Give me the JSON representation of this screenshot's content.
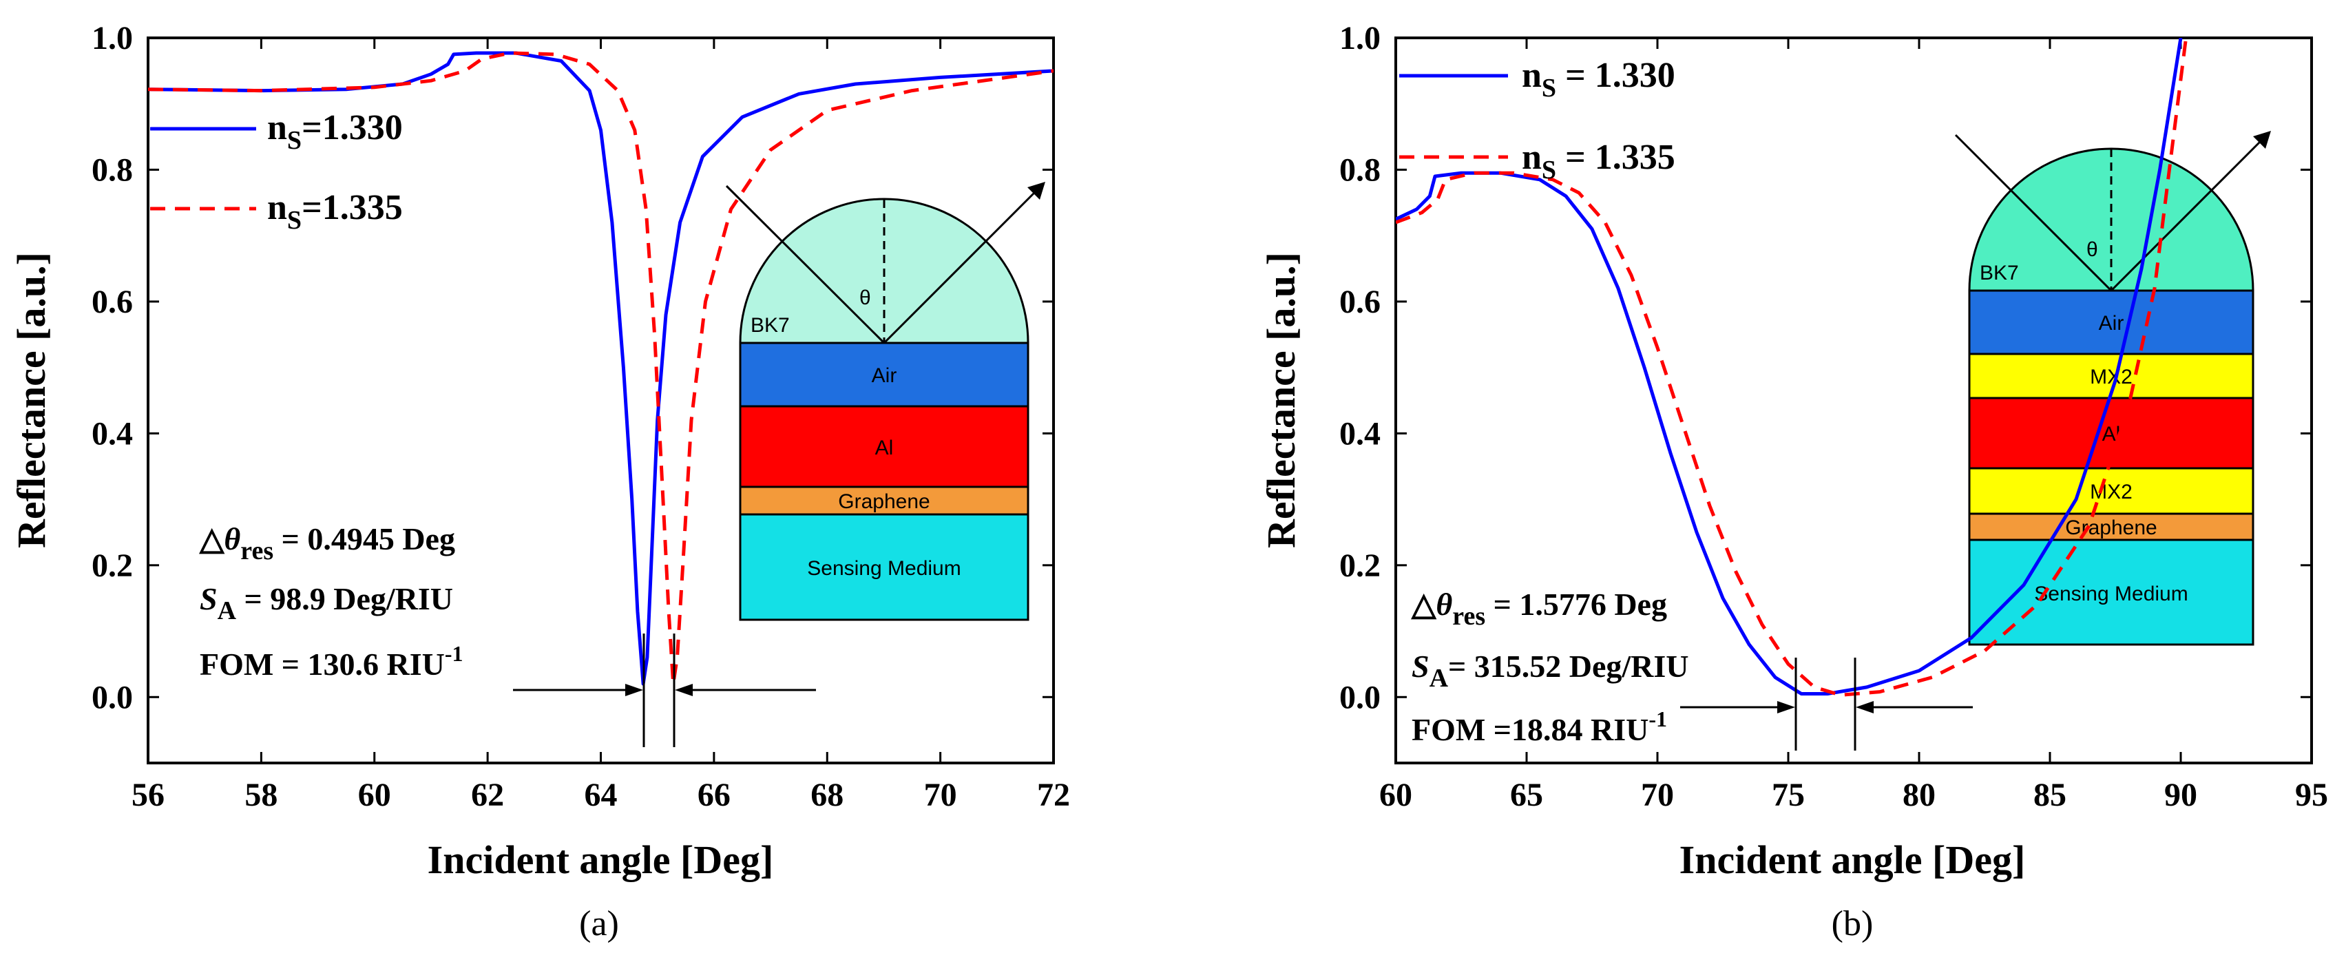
{
  "chart_data": [
    {
      "type": "line",
      "panel_label": "(a)",
      "xlabel": "Incident angle [Deg]",
      "ylabel": "Reflectance [a.u.]",
      "xlim": [
        56,
        72
      ],
      "ylim": [
        -0.1,
        1.0
      ],
      "xticks": [
        "56",
        "58",
        "60",
        "62",
        "64",
        "66",
        "68",
        "70",
        "72"
      ],
      "yticks": [
        "0.0",
        "0.2",
        "0.4",
        "0.6",
        "0.8",
        "1.0"
      ],
      "legend_position": "left",
      "series": [
        {
          "name_main": "n",
          "name_sub": "S",
          "name_rest": "=1.330",
          "color": "#0000ff",
          "dash": "solid",
          "x": [
            56,
            58,
            59.5,
            60.5,
            61.0,
            61.3,
            61.4,
            61.8,
            62.5,
            63.3,
            63.8,
            64.0,
            64.2,
            64.4,
            64.55,
            64.65,
            64.75,
            64.82,
            64.9,
            65.0,
            65.15,
            65.4,
            65.8,
            66.5,
            67.5,
            68.5,
            70,
            72
          ],
          "y": [
            0.922,
            0.92,
            0.922,
            0.93,
            0.945,
            0.96,
            0.975,
            0.977,
            0.977,
            0.965,
            0.92,
            0.86,
            0.72,
            0.5,
            0.3,
            0.13,
            0.02,
            0.06,
            0.22,
            0.42,
            0.58,
            0.72,
            0.82,
            0.88,
            0.915,
            0.93,
            0.94,
            0.95
          ]
        },
        {
          "name_main": "n",
          "name_sub": "S",
          "name_rest": "=1.335",
          "color": "#ff0000",
          "dash": "dashed",
          "x": [
            56,
            58,
            60,
            61.0,
            61.6,
            61.9,
            62.4,
            63.2,
            63.8,
            64.3,
            64.6,
            64.8,
            64.95,
            65.1,
            65.2,
            65.28,
            65.35,
            65.45,
            65.6,
            65.85,
            66.3,
            67.0,
            68.0,
            69.5,
            72
          ],
          "y": [
            0.922,
            0.92,
            0.925,
            0.935,
            0.95,
            0.968,
            0.977,
            0.975,
            0.96,
            0.92,
            0.86,
            0.74,
            0.55,
            0.3,
            0.13,
            0.02,
            0.06,
            0.2,
            0.42,
            0.6,
            0.74,
            0.83,
            0.89,
            0.92,
            0.95
          ]
        }
      ],
      "annotations": {
        "delta_prefix": "△",
        "delta_theta": "θ",
        "delta_sub": "res",
        "delta_rest": " = 0.4945 Deg",
        "sa_main": "S",
        "sa_sub": "A",
        "sa_rest": " = 98.9 Deg/RIU",
        "fom_main": "FOM = 130.6 RIU",
        "fom_sup": "-1"
      },
      "inset": {
        "prism_label": "BK7",
        "theta_label": "θ",
        "layers": [
          {
            "label": "Air",
            "color": "#1f6fe0"
          },
          {
            "label": "Al",
            "color": "#ff0000"
          },
          {
            "label": "Graphene",
            "color": "#f39a3a"
          },
          {
            "label": "Sensing Medium",
            "color": "#14e0e6"
          }
        ],
        "prism_color": "#b3f5e1"
      }
    },
    {
      "type": "line",
      "panel_label": "(b)",
      "xlabel": "Incident angle [Deg]",
      "ylabel": "Reflectance [a.u.]",
      "xlim": [
        60,
        95
      ],
      "ylim": [
        -0.1,
        1.0
      ],
      "xticks": [
        "60",
        "65",
        "70",
        "75",
        "80",
        "85",
        "90",
        "95"
      ],
      "yticks": [
        "0.0",
        "0.2",
        "0.4",
        "0.6",
        "0.8",
        "1.0"
      ],
      "legend_position": "top-left",
      "series": [
        {
          "name_main": "n",
          "name_sub": "S",
          "name_rest": " = 1.330",
          "color": "#0000ff",
          "dash": "solid",
          "x": [
            60,
            60.8,
            61.3,
            61.5,
            62.5,
            64,
            65.5,
            66.5,
            67.5,
            68.5,
            69.5,
            70.5,
            71.5,
            72.5,
            73.5,
            74.5,
            75.5,
            76.5,
            78,
            80,
            82,
            84,
            86,
            87.5,
            88.5,
            89.2,
            90
          ],
          "y": [
            0.725,
            0.74,
            0.76,
            0.79,
            0.795,
            0.795,
            0.785,
            0.76,
            0.71,
            0.62,
            0.5,
            0.37,
            0.25,
            0.15,
            0.08,
            0.03,
            0.005,
            0.005,
            0.015,
            0.04,
            0.09,
            0.17,
            0.3,
            0.48,
            0.65,
            0.8,
            1.0
          ]
        },
        {
          "name_main": "n",
          "name_sub": "S",
          "name_rest": " = 1.335",
          "color": "#ff0000",
          "dash": "dashed",
          "x": [
            60,
            61,
            61.6,
            61.9,
            63,
            64.5,
            66,
            67,
            68,
            69,
            70,
            71,
            72,
            73,
            74,
            75,
            76,
            77,
            78.5,
            80.5,
            82.5,
            84.5,
            86.5,
            88,
            89,
            89.5,
            90.2
          ],
          "y": [
            0.72,
            0.735,
            0.755,
            0.785,
            0.795,
            0.795,
            0.785,
            0.765,
            0.72,
            0.64,
            0.53,
            0.41,
            0.29,
            0.19,
            0.11,
            0.05,
            0.015,
            0.003,
            0.008,
            0.03,
            0.07,
            0.14,
            0.26,
            0.44,
            0.62,
            0.78,
            1.0
          ]
        }
      ],
      "annotations": {
        "delta_prefix": "△",
        "delta_theta": "θ",
        "delta_sub": "res",
        "delta_rest": " = 1.5776 Deg",
        "sa_main": "S",
        "sa_sub": "A",
        "sa_rest": "= 315.52 Deg/RIU",
        "fom_main": "FOM =18.84 RIU",
        "fom_sup": "-1"
      },
      "inset": {
        "prism_label": "BK7",
        "theta_label": "θ",
        "layers": [
          {
            "label": "Air",
            "color": "#1f6fe0"
          },
          {
            "label": "MX2",
            "color": "#ffff00"
          },
          {
            "label": "Al",
            "color": "#ff0000"
          },
          {
            "label": "MX2",
            "color": "#ffff00"
          },
          {
            "label": "Graphene",
            "color": "#f39a3a"
          },
          {
            "label": "Sensing Medium",
            "color": "#14e0e6"
          }
        ],
        "prism_color": "#4fefc1"
      }
    }
  ]
}
